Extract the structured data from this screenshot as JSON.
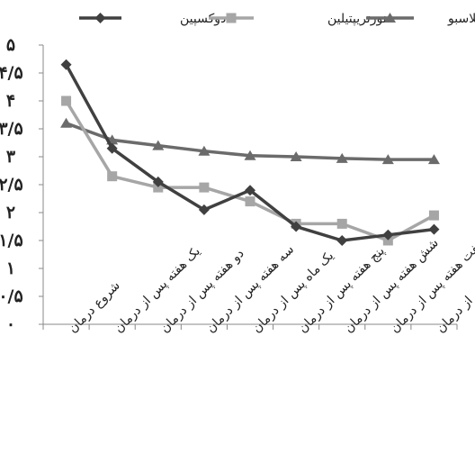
{
  "chart_data": {
    "type": "line",
    "title": "",
    "xlabel": "",
    "ylabel": "",
    "ylim": [
      0,
      5
    ],
    "y_ticks": [
      "۰",
      "۰/۵",
      "۱",
      "۱/۵",
      "۲",
      "۲/۵",
      "۳",
      "۳/۵",
      "۴",
      "۴/۵",
      "۵"
    ],
    "y_tick_values": [
      0,
      0.5,
      1,
      1.5,
      2,
      2.5,
      3,
      3.5,
      4,
      4.5,
      5
    ],
    "categories": [
      "شروع درمان",
      "یک هفته پس از درمان",
      "دو هفته پس از درمان",
      "سه هفته پس از درمان",
      "یک ماه پس از درمان",
      "پنج هفته پس از درمان",
      "شش هفته پس از درمان",
      "هفت هفته پس از درمان",
      "دو ماه پس از درمان"
    ],
    "series": [
      {
        "name": "دوکسپین",
        "marker": "diamond",
        "color": "#404040",
        "values": [
          4.65,
          3.15,
          2.55,
          2.05,
          2.4,
          1.75,
          1.5,
          1.6,
          1.7
        ]
      },
      {
        "name": "نورتریپتیلین",
        "marker": "square",
        "color": "#a6a6a6",
        "values": [
          4.0,
          2.65,
          2.45,
          2.45,
          2.2,
          1.8,
          1.8,
          1.5,
          1.95
        ]
      },
      {
        "name": "پلاسبو",
        "marker": "triangle",
        "color": "#6b6b6b",
        "values": [
          3.6,
          3.3,
          3.2,
          3.1,
          3.02,
          3.0,
          2.97,
          2.95,
          2.95
        ]
      }
    ],
    "grid": false,
    "legend": {
      "placement": "top"
    }
  }
}
